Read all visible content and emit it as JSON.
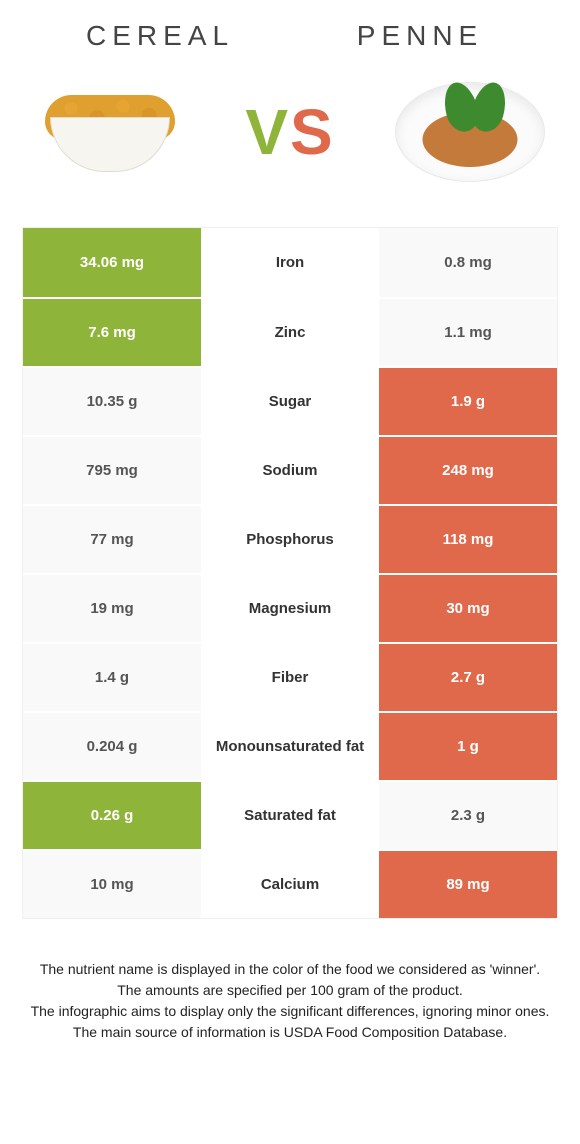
{
  "foods": {
    "left": {
      "name": "CEREAL"
    },
    "right": {
      "name": "PENNE"
    }
  },
  "vs": {
    "v": "V",
    "s": "S"
  },
  "colors": {
    "left": "#8fb43a",
    "right": "#e0694c",
    "lose_bg": "#f9f9f9",
    "lose_text": "#555555"
  },
  "rows": [
    {
      "nutrient": "Iron",
      "left": "34.06 mg",
      "right": "0.8 mg",
      "winner": "left"
    },
    {
      "nutrient": "Zinc",
      "left": "7.6 mg",
      "right": "1.1 mg",
      "winner": "left"
    },
    {
      "nutrient": "Sugar",
      "left": "10.35 g",
      "right": "1.9 g",
      "winner": "right"
    },
    {
      "nutrient": "Sodium",
      "left": "795 mg",
      "right": "248 mg",
      "winner": "right"
    },
    {
      "nutrient": "Phosphorus",
      "left": "77 mg",
      "right": "118 mg",
      "winner": "right"
    },
    {
      "nutrient": "Magnesium",
      "left": "19 mg",
      "right": "30 mg",
      "winner": "right"
    },
    {
      "nutrient": "Fiber",
      "left": "1.4 g",
      "right": "2.7 g",
      "winner": "right"
    },
    {
      "nutrient": "Monounsaturated fat",
      "left": "0.204 g",
      "right": "1 g",
      "winner": "right"
    },
    {
      "nutrient": "Saturated fat",
      "left": "0.26 g",
      "right": "2.3 g",
      "winner": "left"
    },
    {
      "nutrient": "Calcium",
      "left": "10 mg",
      "right": "89 mg",
      "winner": "right"
    }
  ],
  "footer": {
    "line1": "The nutrient name is displayed in the color of the food we considered as 'winner'.",
    "line2": "The amounts are specified per 100 gram of the product.",
    "line3": "The infographic aims to display only the significant differences, ignoring minor ones.",
    "line4": "The main source of information is USDA Food Composition Database."
  }
}
